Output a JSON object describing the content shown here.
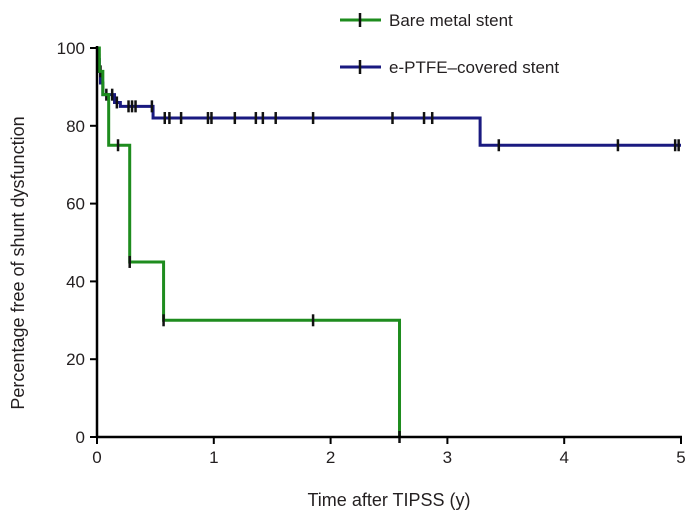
{
  "chart_data": {
    "type": "line",
    "subtype": "kaplan-meier-step",
    "title": "",
    "xlabel": "Time after TIPSS (y)",
    "ylabel": "Percentage free of shunt dysfunction",
    "xlim": [
      0,
      5
    ],
    "ylim": [
      0,
      100
    ],
    "xticks": [
      0,
      1,
      2,
      3,
      4,
      5
    ],
    "yticks": [
      0,
      20,
      40,
      60,
      80,
      100
    ],
    "grid": false,
    "legend_position": "top-right",
    "series": [
      {
        "name": "Bare metal stent",
        "color": "#1e8c1e",
        "steps": [
          [
            0,
            100
          ],
          [
            0.02,
            94
          ],
          [
            0.05,
            88
          ],
          [
            0.1,
            75
          ],
          [
            0.28,
            45
          ],
          [
            0.57,
            30
          ],
          [
            2.59,
            0
          ]
        ],
        "end_x": 2.59,
        "censored": [
          [
            0.18,
            75
          ],
          [
            0.28,
            45
          ],
          [
            0.57,
            30
          ],
          [
            1.85,
            30
          ],
          [
            2.59,
            0
          ]
        ]
      },
      {
        "name": "e-PTFE–covered stent",
        "color": "#1a1a80",
        "steps": [
          [
            0,
            100
          ],
          [
            0.01,
            97
          ],
          [
            0.02,
            94
          ],
          [
            0.03,
            91
          ],
          [
            0.05,
            88
          ],
          [
            0.15,
            86
          ],
          [
            0.2,
            85
          ],
          [
            0.48,
            82
          ],
          [
            3.28,
            75
          ]
        ],
        "end_x": 5.0,
        "censored": [
          [
            0.02,
            97
          ],
          [
            0.03,
            94
          ],
          [
            0.08,
            88
          ],
          [
            0.13,
            88
          ],
          [
            0.17,
            86
          ],
          [
            0.27,
            85
          ],
          [
            0.3,
            85
          ],
          [
            0.33,
            85
          ],
          [
            0.47,
            85
          ],
          [
            0.58,
            82
          ],
          [
            0.62,
            82
          ],
          [
            0.72,
            82
          ],
          [
            0.95,
            82
          ],
          [
            0.98,
            82
          ],
          [
            1.18,
            82
          ],
          [
            1.36,
            82
          ],
          [
            1.42,
            82
          ],
          [
            1.53,
            82
          ],
          [
            1.85,
            82
          ],
          [
            2.53,
            82
          ],
          [
            2.8,
            82
          ],
          [
            2.87,
            82
          ],
          [
            3.44,
            75
          ],
          [
            4.46,
            75
          ],
          [
            4.95,
            75
          ],
          [
            4.98,
            75
          ]
        ]
      }
    ]
  }
}
